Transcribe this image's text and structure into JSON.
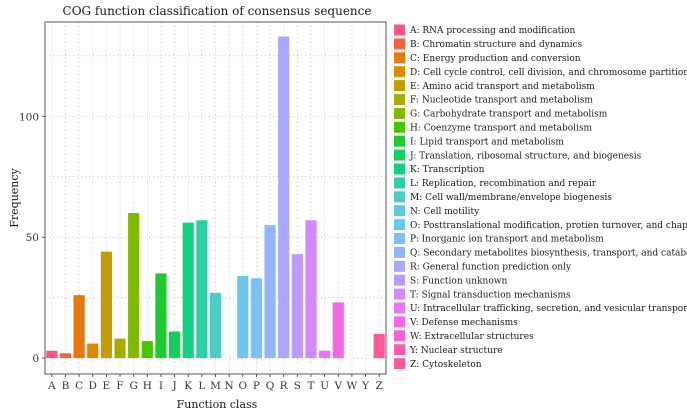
{
  "chart_data": {
    "type": "bar",
    "title": "COG function classification of consensus sequence",
    "xlabel": "Function class",
    "ylabel": "Frequency",
    "ylim": [
      -6.6,
      139
    ],
    "yticks": [
      0,
      50,
      100
    ],
    "grid": true,
    "legend_position": "right",
    "categories": [
      "A",
      "B",
      "C",
      "D",
      "E",
      "F",
      "G",
      "H",
      "I",
      "J",
      "K",
      "L",
      "M",
      "N",
      "O",
      "P",
      "Q",
      "R",
      "S",
      "T",
      "U",
      "V",
      "W",
      "Y",
      "Z"
    ],
    "values": [
      3,
      2,
      26,
      6,
      44,
      8,
      60,
      7,
      35,
      11,
      56,
      57,
      27,
      0,
      34,
      33,
      55,
      133,
      43,
      57,
      3,
      23,
      0,
      0,
      10
    ],
    "colors": [
      "#f8577f",
      "#f46438",
      "#e8770e",
      "#d98b00",
      "#c39e00",
      "#a8ac00",
      "#80b900",
      "#48c400",
      "#1ccb2e",
      "#10d05a",
      "#12d082",
      "#2fcfa5",
      "#4ccdc4",
      "#5ccbdc",
      "#6ac7ee",
      "#7bc0fb",
      "#91b5ff",
      "#a8a8ff",
      "#be99ff",
      "#d488ff",
      "#e675f8",
      "#f567e5",
      "#fd5fcf",
      "#ff5bb4",
      "#fe5a9a"
    ],
    "legend": [
      "A: RNA processing and modification",
      "B: Chromatin structure and dynamics",
      "C: Energy production and conversion",
      "D: Cell cycle control, cell division, and chromosome partitioning",
      "E: Amino acid transport and metabolism",
      "F: Nucleotide transport and metabolism",
      "G: Carbohydrate transport and metabolism",
      "H: Coenzyme transport and metabolism",
      "I: Lipid transport and metabolism",
      "J: Translation, ribosomal structure, and biogenesis",
      "K: Transcription",
      "L: Replication, recombination and repair",
      "M: Cell wall/membrane/envelope biogenesis",
      "N: Cell motility",
      "O: Posttranslational modification, protien turnover, and chaperones",
      "P: Inorganic ion transport and metabolism",
      "Q: Secondary metabolites biosynthesis, transport, and catabolism",
      "R: General function prediction only",
      "S: Function unknown",
      "T: Signal transduction mechanisms",
      "U: Intracellular trafficking, secretion, and vesicular transport",
      "V: Defense mechanisms",
      "W: Extracellular structures",
      "Y: Nuclear structure",
      "Z: Cytoskeleton"
    ]
  }
}
